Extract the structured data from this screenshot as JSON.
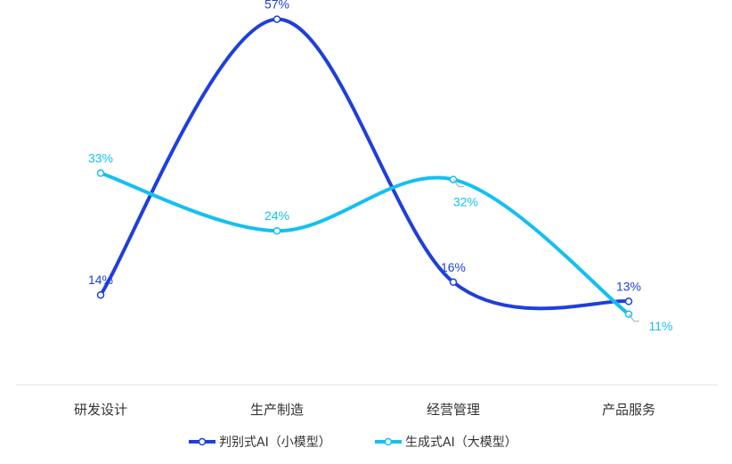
{
  "chart_data": {
    "type": "line",
    "categories": [
      "研发设计",
      "生产制造",
      "经营管理",
      "产品服务"
    ],
    "series": [
      {
        "name": "判别式AI（小模型）",
        "values": [
          14,
          57,
          16,
          13
        ],
        "labels": [
          "14%",
          "57%",
          "16%",
          "13%"
        ],
        "color": "#1f3fdc"
      },
      {
        "name": "生成式AI（大模型）",
        "values": [
          33,
          24,
          32,
          11
        ],
        "labels": [
          "33%",
          "24%",
          "32%",
          "11%"
        ],
        "color": "#14c0f0"
      }
    ],
    "ylim": [
      0,
      60
    ],
    "grid": false,
    "smooth": true,
    "legend_position": "bottom-center"
  }
}
